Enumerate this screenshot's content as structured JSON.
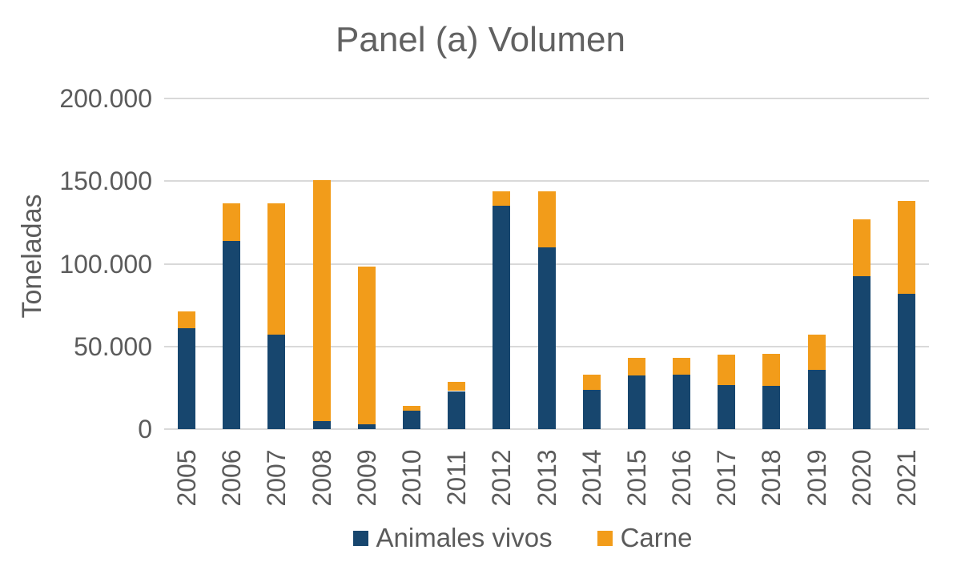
{
  "chart_data": {
    "type": "bar",
    "stacked": true,
    "title": "Panel (a) Volumen",
    "xlabel": "",
    "ylabel": "Toneladas",
    "ylim": [
      0,
      200000
    ],
    "grid": "horizontal",
    "legend_position": "bottom",
    "grid_color": "#d9d9d9",
    "text_color": "#5b5b5b",
    "yticks": [
      {
        "value": 0,
        "label": "0"
      },
      {
        "value": 50000,
        "label": "50.000"
      },
      {
        "value": 100000,
        "label": "100.000"
      },
      {
        "value": 150000,
        "label": "150.000"
      },
      {
        "value": 200000,
        "label": "200.000"
      }
    ],
    "categories": [
      "2005",
      "2006",
      "2007",
      "2008",
      "2009",
      "2010",
      "2011",
      "2012",
      "2013",
      "2014",
      "2015",
      "2016",
      "2017",
      "2018",
      "2019",
      "2020",
      "2021"
    ],
    "series": [
      {
        "name": "Animales vivos",
        "color": "#17466E",
        "values": [
          61000,
          114000,
          57000,
          5000,
          3000,
          11000,
          23000,
          135000,
          110000,
          23500,
          32500,
          33000,
          26500,
          26000,
          36000,
          92500,
          82000
        ]
      },
      {
        "name": "Carne",
        "color": "#F29C1A",
        "values": [
          10000,
          22500,
          79500,
          145500,
          95500,
          3000,
          5500,
          9000,
          34000,
          9500,
          10500,
          10000,
          18500,
          19500,
          21000,
          34500,
          56000
        ]
      }
    ]
  }
}
